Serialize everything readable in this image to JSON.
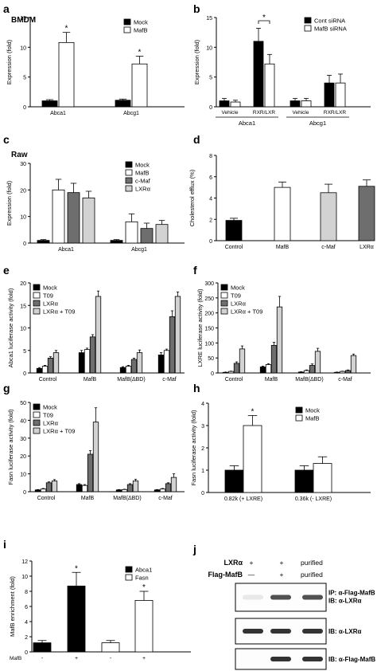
{
  "colors": {
    "black": "#000000",
    "white": "#ffffff",
    "gray": "#6e6e6e",
    "lightgray": "#d2d2d2",
    "band": "#333333",
    "faint": "#bdbdbd"
  },
  "chart_data": [
    {
      "id": "a",
      "type": "bar",
      "panel_label": "a",
      "title": "BMDM",
      "ylabel": "Expression (fold)",
      "ylim": [
        0,
        15
      ],
      "yticks": [
        0,
        5,
        10,
        15
      ],
      "categories": [
        "Abca1",
        "Abcg1"
      ],
      "series": [
        {
          "name": "Mock",
          "color": "#000000",
          "values": [
            1.0,
            1.1
          ],
          "errors": [
            0.2,
            0.2
          ]
        },
        {
          "name": "MafB",
          "color": "#ffffff",
          "values": [
            10.8,
            7.2
          ],
          "errors": [
            1.7,
            1.3
          ]
        }
      ],
      "stars": [
        {
          "category": 0,
          "series": 1,
          "label": "*"
        },
        {
          "category": 1,
          "series": 1,
          "label": "*"
        }
      ],
      "legend": "top-right"
    },
    {
      "id": "b",
      "type": "bar",
      "panel_label": "b",
      "title": "",
      "ylabel": "Expression (fold)",
      "ylim": [
        0,
        15
      ],
      "yticks": [
        0,
        5,
        10,
        15
      ],
      "categories": [
        "Vehicle",
        "RXR/LXR",
        "Vehicle",
        "RXR/LXR"
      ],
      "groups": [
        {
          "label": "Abca1",
          "categories": [
            0,
            1
          ]
        },
        {
          "label": "Abcg1",
          "categories": [
            2,
            3
          ]
        }
      ],
      "series": [
        {
          "name": "Cont siRNA",
          "color": "#000000",
          "values": [
            1.0,
            11.0,
            1.0,
            4.0
          ],
          "errors": [
            0.4,
            2.2,
            0.4,
            1.3
          ]
        },
        {
          "name": "MafB siRNA",
          "color": "#ffffff",
          "values": [
            0.8,
            7.2,
            1.0,
            4.0
          ],
          "errors": [
            0.3,
            1.6,
            0.4,
            1.5
          ]
        }
      ],
      "bracket": {
        "category": 1,
        "label": "*"
      },
      "legend": "top-right"
    },
    {
      "id": "c",
      "type": "bar",
      "panel_label": "c",
      "title": "Raw",
      "ylabel": "Expression (fold)",
      "ylim": [
        0,
        30
      ],
      "yticks": [
        0,
        10,
        20,
        30
      ],
      "categories": [
        "Abca1",
        "Abcg1"
      ],
      "series": [
        {
          "name": "Mock",
          "color": "#000000",
          "values": [
            1.0,
            1.0
          ],
          "errors": [
            0.3,
            0.3
          ]
        },
        {
          "name": "MafB",
          "color": "#ffffff",
          "values": [
            20.0,
            8.0
          ],
          "errors": [
            4.0,
            3.0
          ]
        },
        {
          "name": "c-Maf",
          "color": "#6e6e6e",
          "values": [
            19.0,
            5.5
          ],
          "errors": [
            3.5,
            2.0
          ]
        },
        {
          "name": "LXRα",
          "color": "#d2d2d2",
          "values": [
            17.0,
            7.0
          ],
          "errors": [
            2.5,
            1.5
          ]
        }
      ],
      "legend": "top-right"
    },
    {
      "id": "d",
      "type": "bar",
      "panel_label": "d",
      "title": "",
      "ylabel": "Cholesterol efflux (%)",
      "ylim": [
        0,
        8
      ],
      "yticks": [
        0,
        2,
        4,
        6,
        8
      ],
      "categories": [
        "Control",
        "MafB",
        "c-Maf",
        "LXRα"
      ],
      "series": [
        {
          "name": "",
          "colors": [
            "#000000",
            "#ffffff",
            "#d2d2d2",
            "#6e6e6e"
          ],
          "values": [
            1.9,
            5.0,
            4.5,
            5.1
          ],
          "errors": [
            0.2,
            0.5,
            0.8,
            0.6
          ]
        }
      ]
    },
    {
      "id": "e",
      "type": "bar",
      "panel_label": "e",
      "title": "",
      "ylabel": "Abca1 luciferase activity (fold)",
      "ylim": [
        0,
        20
      ],
      "yticks": [
        0,
        5,
        10,
        15,
        20
      ],
      "categories": [
        "Control",
        "MafB",
        "MafB(ΔBD)",
        "c-Maf"
      ],
      "series": [
        {
          "name": "Mock",
          "color": "#000000",
          "values": [
            1.0,
            4.5,
            1.2,
            4.0
          ],
          "errors": [
            0.2,
            0.5,
            0.2,
            0.5
          ]
        },
        {
          "name": "T09",
          "color": "#ffffff",
          "values": [
            1.5,
            5.2,
            1.5,
            5.0
          ],
          "errors": [
            0.2,
            0.3,
            0.2,
            0.3
          ]
        },
        {
          "name": "LXRα",
          "color": "#6e6e6e",
          "values": [
            3.3,
            8.0,
            3.0,
            12.5
          ],
          "errors": [
            0.3,
            0.5,
            0.3,
            1.3
          ]
        },
        {
          "name": "LXRα + T09",
          "color": "#d2d2d2",
          "values": [
            4.5,
            17.0,
            4.5,
            17.0
          ],
          "errors": [
            0.5,
            1.2,
            0.6,
            1.0
          ]
        }
      ],
      "legend": "top-left"
    },
    {
      "id": "f",
      "type": "bar",
      "panel_label": "f",
      "title": "",
      "ylabel": "LXRE luciferase activity (fold)",
      "ylim": [
        0,
        300
      ],
      "yticks": [
        0,
        50,
        100,
        150,
        200,
        250,
        300
      ],
      "categories": [
        "Control",
        "MafB",
        "MafB(ΔBD)",
        "c-Maf"
      ],
      "series": [
        {
          "name": "Mock",
          "color": "#000000",
          "values": [
            2,
            20,
            3,
            2
          ],
          "errors": [
            1,
            3,
            1,
            1
          ]
        },
        {
          "name": "T09",
          "color": "#ffffff",
          "values": [
            5,
            28,
            8,
            5
          ],
          "errors": [
            1,
            3,
            2,
            1
          ]
        },
        {
          "name": "LXRα",
          "color": "#6e6e6e",
          "values": [
            32,
            92,
            25,
            8
          ],
          "errors": [
            5,
            10,
            5,
            2
          ]
        },
        {
          "name": "LXRα + T09",
          "color": "#d2d2d2",
          "values": [
            80,
            220,
            72,
            58
          ],
          "errors": [
            10,
            35,
            10,
            5
          ]
        }
      ],
      "legend": "top-left"
    },
    {
      "id": "g",
      "type": "bar",
      "panel_label": "g",
      "title": "",
      "ylabel": "Fasn luciferase activity (fold)",
      "ylim": [
        0,
        50
      ],
      "yticks": [
        0,
        10,
        20,
        30,
        40,
        50
      ],
      "categories": [
        "Control",
        "MafB",
        "MafB(ΔBD)",
        "c-Maf"
      ],
      "series": [
        {
          "name": "Mock",
          "color": "#000000",
          "values": [
            1.0,
            4.0,
            1.0,
            1.0
          ],
          "errors": [
            0.2,
            0.5,
            0.2,
            0.2
          ]
        },
        {
          "name": "T09",
          "color": "#ffffff",
          "values": [
            1.5,
            3.5,
            1.2,
            1.5
          ],
          "errors": [
            0.3,
            0.5,
            0.2,
            0.3
          ]
        },
        {
          "name": "LXRα",
          "color": "#6e6e6e",
          "values": [
            5.0,
            21.0,
            4.0,
            4.5
          ],
          "errors": [
            0.5,
            2.0,
            0.5,
            0.5
          ]
        },
        {
          "name": "LXRα + T09",
          "color": "#d2d2d2",
          "values": [
            6.0,
            39.0,
            6.0,
            8.0
          ],
          "errors": [
            0.8,
            8.0,
            1.0,
            2.0
          ]
        }
      ],
      "legend": "top-left"
    },
    {
      "id": "h",
      "type": "bar",
      "panel_label": "h",
      "title": "",
      "ylabel": "Fasn luciferase activity (fold)",
      "ylim": [
        0,
        4
      ],
      "yticks": [
        0,
        1,
        2,
        3,
        4
      ],
      "categories": [
        "0.82k (+ LXRE)",
        "0.36k (- LXRE)"
      ],
      "series": [
        {
          "name": "Mock",
          "color": "#000000",
          "values": [
            1.0,
            1.0
          ],
          "errors": [
            0.2,
            0.2
          ]
        },
        {
          "name": "MafB",
          "color": "#ffffff",
          "values": [
            3.0,
            1.3
          ],
          "errors": [
            0.45,
            0.3
          ]
        }
      ],
      "stars": [
        {
          "category": 0,
          "series": 1,
          "label": "*"
        }
      ],
      "legend": "top-right"
    },
    {
      "id": "i",
      "type": "bar",
      "panel_label": "i",
      "title": "",
      "ylabel": "MafB enrichment (fold)",
      "ylim": [
        0,
        12
      ],
      "yticks": [
        0,
        2,
        4,
        6,
        8,
        10,
        12
      ],
      "xprefix": "MafB",
      "categories": [
        "-",
        "+",
        "-",
        "+"
      ],
      "series": [
        {
          "name": "",
          "colors": [
            "#000000",
            "#000000",
            "#ffffff",
            "#ffffff"
          ],
          "values": [
            1.2,
            8.7,
            1.2,
            6.8
          ],
          "errors": [
            0.3,
            1.8,
            0.3,
            1.2
          ]
        }
      ],
      "stars": [
        {
          "category": 1,
          "series": 0,
          "label": "*"
        },
        {
          "category": 3,
          "series": 0,
          "label": "*"
        }
      ],
      "legend_items": [
        {
          "name": "Abca1",
          "color": "#000000"
        },
        {
          "name": "Fasn",
          "color": "#ffffff"
        }
      ],
      "legend": "top-right"
    }
  ],
  "blot": {
    "panel_label": "j",
    "rows": [
      {
        "name": "LXRα",
        "cells": [
          "+",
          "+",
          "purified"
        ]
      },
      {
        "name": "Flag-MafB",
        "cells": [
          "—",
          "+",
          "purified"
        ]
      }
    ],
    "strips": [
      {
        "label_lines": [
          "IP: α-Flag-MafB",
          "IB: α-LXRα"
        ],
        "bands": [
          0.1,
          0.85,
          0.85
        ]
      },
      {
        "label_lines": [
          "IB: α-LXRα"
        ],
        "bands": [
          1.0,
          1.0,
          1.0
        ]
      },
      {
        "label_lines": [
          "IB: α-Flag-MafB"
        ],
        "bands": [
          0,
          1.0,
          1.0
        ]
      }
    ]
  }
}
